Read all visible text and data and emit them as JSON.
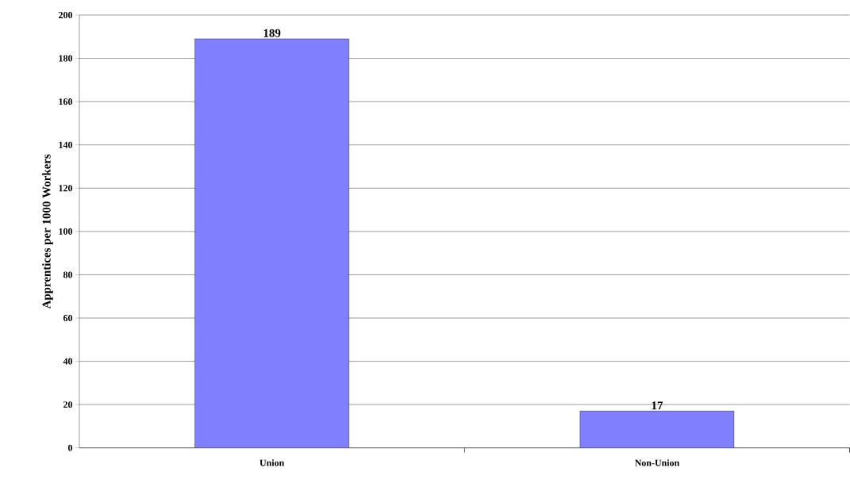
{
  "chart_data": {
    "type": "bar",
    "ylabel": "Apprentices per 1000 Workers",
    "categories": [
      "Union",
      "Non-Union"
    ],
    "values": [
      189,
      17
    ],
    "color": "#8080ff",
    "ylim": [
      0,
      200
    ],
    "yticks": [
      0,
      20,
      40,
      60,
      80,
      100,
      120,
      140,
      160,
      180,
      200
    ],
    "grid": "y",
    "data_labels": true
  }
}
